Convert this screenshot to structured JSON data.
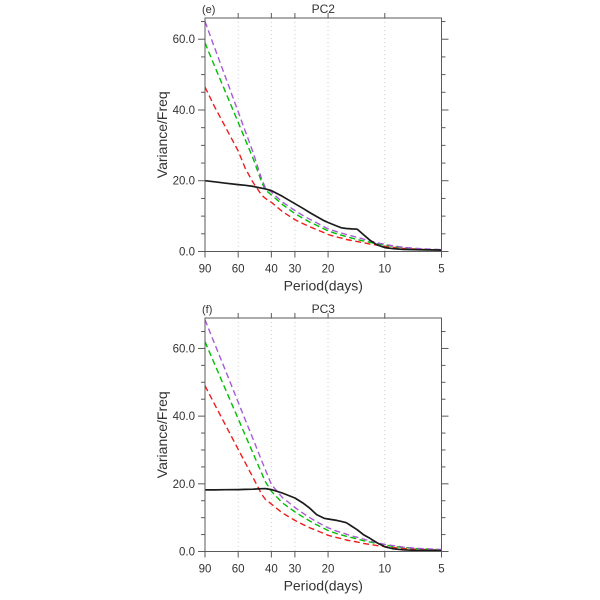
{
  "style": {
    "background": "#ffffff",
    "frame_color": "#5a5a5a",
    "grid_color": "#cccccc",
    "text_color": "#333333"
  },
  "chart_data": [
    {
      "id": "pc2",
      "type": "line",
      "panel_label": "(e)",
      "title": "PC2",
      "xlabel": "Period(days)",
      "ylabel": "Variance/Freq",
      "x_scale": "log10-of-frequency (period decreasing left to right)",
      "xlim": [
        90,
        5
      ],
      "ylim": [
        0,
        66
      ],
      "grid": "vertical-dotted",
      "legend": "none",
      "x_ticks": [
        90,
        60,
        40,
        30,
        20,
        10,
        5
      ],
      "x_tick_labels": [
        "90",
        "60",
        "40",
        "30",
        "20",
        "10",
        "5"
      ],
      "x_gridlines": [
        60,
        40,
        30,
        20,
        10
      ],
      "y_major_ticks": [
        0,
        20,
        40,
        60
      ],
      "y_major_tick_labels": [
        "0.0",
        "20.0",
        "40.0",
        "60.0"
      ],
      "y_minor_tick_step": 5,
      "x_periods": [
        90,
        80,
        70,
        60,
        55,
        50,
        45,
        43,
        40,
        35,
        30,
        27,
        25,
        23,
        21,
        20,
        18,
        17,
        16,
        15,
        14,
        13,
        12,
        11,
        10,
        9,
        8,
        7,
        6,
        5
      ],
      "series": [
        {
          "name": "red-dashed",
          "color": "#ee1c1c",
          "style": "dashed",
          "values": [
            46.5,
            40.9,
            35.1,
            28.4,
            23.5,
            19.5,
            15.9,
            15.0,
            13.9,
            11.3,
            9.0,
            7.8,
            7.0,
            6.2,
            5.3,
            4.8,
            4.1,
            3.8,
            3.4,
            3.1,
            2.8,
            2.5,
            2.1,
            1.8,
            1.5,
            1.2,
            0.9,
            0.7,
            0.55,
            0.45
          ]
        },
        {
          "name": "green-dashed",
          "color": "#00bf00",
          "style": "dashed",
          "values": [
            59.0,
            52.4,
            45.0,
            36.5,
            31.6,
            26.3,
            19.6,
            17.4,
            16.0,
            13.3,
            10.7,
            9.3,
            8.3,
            7.4,
            6.4,
            5.8,
            5.0,
            4.6,
            4.2,
            3.8,
            3.4,
            3.0,
            2.6,
            2.2,
            1.8,
            1.45,
            1.1,
            0.8,
            0.6,
            0.5
          ]
        },
        {
          "name": "purple-dashed",
          "color": "#a75ad4",
          "style": "dashed",
          "values": [
            65.0,
            57.6,
            49.2,
            39.5,
            34.0,
            28.0,
            20.4,
            18.0,
            16.8,
            14.0,
            11.6,
            10.1,
            9.1,
            8.1,
            7.0,
            6.4,
            5.6,
            5.2,
            4.8,
            4.4,
            4.0,
            3.5,
            3.0,
            2.5,
            2.0,
            1.6,
            1.2,
            0.9,
            0.7,
            0.55
          ]
        },
        {
          "name": "black-solid",
          "color": "#1b1b1b",
          "style": "solid",
          "values": [
            20.0,
            19.7,
            19.3,
            18.9,
            18.7,
            18.4,
            17.9,
            17.7,
            17.2,
            15.6,
            13.5,
            12.1,
            11.0,
            9.9,
            8.7,
            8.2,
            7.2,
            6.7,
            6.5,
            6.4,
            6.3,
            4.8,
            3.2,
            1.9,
            1.1,
            0.8,
            0.6,
            0.5,
            0.45,
            0.4
          ]
        }
      ]
    },
    {
      "id": "pc3",
      "type": "line",
      "panel_label": "(f)",
      "title": "PC3",
      "xlabel": "Period(days)",
      "ylabel": "Variance/Freq",
      "x_scale": "log10-of-frequency (period decreasing left to right)",
      "xlim": [
        90,
        5
      ],
      "ylim": [
        0,
        69
      ],
      "grid": "vertical-dotted",
      "legend": "none",
      "x_ticks": [
        90,
        60,
        40,
        30,
        20,
        10,
        5
      ],
      "x_tick_labels": [
        "90",
        "60",
        "40",
        "30",
        "20",
        "10",
        "5"
      ],
      "x_gridlines": [
        60,
        40,
        30,
        20,
        10
      ],
      "y_major_ticks": [
        0,
        20,
        40,
        60
      ],
      "y_major_tick_labels": [
        "0.0",
        "20.0",
        "40.0",
        "60.0"
      ],
      "y_minor_tick_step": 5,
      "x_periods": [
        90,
        80,
        70,
        60,
        55,
        50,
        45,
        43,
        40,
        35,
        30,
        27,
        25,
        23,
        21,
        20,
        18,
        17,
        16,
        15,
        14,
        13,
        12,
        11,
        10,
        9,
        8,
        7,
        6,
        5
      ],
      "series": [
        {
          "name": "red-dashed",
          "color": "#ee1c1c",
          "style": "dashed",
          "values": [
            49.0,
            43.5,
            37.3,
            30.2,
            26.2,
            21.8,
            16.9,
            15.4,
            14.0,
            11.4,
            9.2,
            7.9,
            7.0,
            6.2,
            5.3,
            4.8,
            4.1,
            3.8,
            3.4,
            3.1,
            2.8,
            2.4,
            2.1,
            1.75,
            1.45,
            1.15,
            0.9,
            0.7,
            0.55,
            0.45
          ]
        },
        {
          "name": "green-dashed",
          "color": "#00bf00",
          "style": "dashed",
          "values": [
            62.0,
            55.4,
            47.8,
            39.2,
            34.3,
            29.0,
            23.1,
            20.6,
            17.8,
            14.4,
            11.7,
            10.1,
            9.0,
            7.9,
            6.8,
            6.2,
            5.3,
            4.9,
            4.5,
            4.1,
            3.7,
            3.2,
            2.8,
            2.3,
            1.9,
            1.5,
            1.2,
            0.9,
            0.7,
            0.5
          ]
        },
        {
          "name": "purple-dashed",
          "color": "#a75ad4",
          "style": "dashed",
          "values": [
            68.5,
            61.4,
            53.4,
            44.1,
            38.9,
            33.2,
            26.8,
            24.1,
            19.8,
            16.0,
            13.0,
            11.2,
            10.0,
            8.8,
            7.6,
            7.0,
            6.0,
            5.6,
            5.1,
            4.6,
            4.2,
            3.7,
            3.1,
            2.6,
            2.1,
            1.7,
            1.3,
            1.0,
            0.8,
            0.6
          ]
        },
        {
          "name": "black-solid",
          "color": "#1b1b1b",
          "style": "solid",
          "values": [
            18.2,
            18.2,
            18.25,
            18.3,
            18.35,
            18.4,
            18.55,
            18.6,
            18.3,
            17.3,
            15.8,
            14.2,
            12.8,
            10.9,
            9.8,
            9.6,
            9.2,
            8.9,
            8.5,
            7.5,
            6.4,
            5.0,
            3.9,
            2.6,
            1.4,
            0.8,
            0.5,
            0.35,
            0.3,
            0.25
          ]
        }
      ]
    }
  ]
}
